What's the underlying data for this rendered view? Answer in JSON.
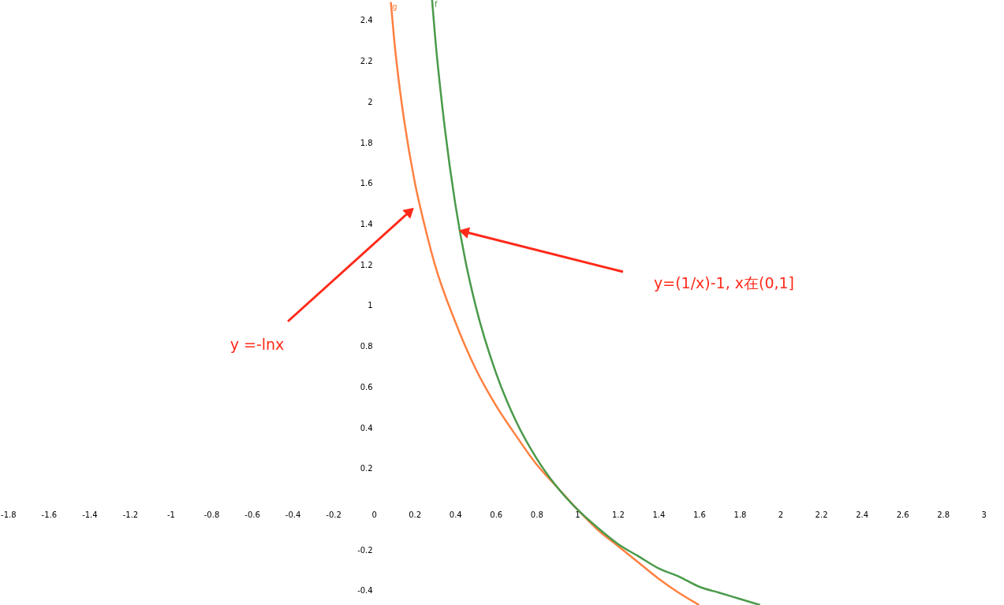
{
  "chart_data": {
    "type": "line",
    "xlim": [
      -1.84,
      3.1
    ],
    "ylim": [
      -0.47,
      2.5
    ],
    "xticks": [
      -1.8,
      -1.6,
      -1.4,
      -1.2,
      -1,
      -0.8,
      -0.6,
      -0.4,
      -0.2,
      0,
      0.2,
      0.4,
      0.6,
      0.8,
      1,
      1.2,
      1.4,
      1.6,
      1.8,
      2,
      2.2,
      2.4,
      2.6,
      2.8,
      3
    ],
    "yticks": [
      -0.4,
      -0.2,
      0.2,
      0.4,
      0.6,
      0.8,
      1,
      1.2,
      1.4,
      1.6,
      1.8,
      2,
      2.2,
      2.4
    ],
    "grid": false,
    "marker": "none",
    "line_style": "solid",
    "series": [
      {
        "name": "g",
        "color": "#ff8040",
        "x": [
          0.083,
          0.1,
          0.12,
          0.15,
          0.2,
          0.25,
          0.3,
          0.4,
          0.5,
          0.6,
          0.7,
          0.8,
          0.9,
          1,
          1.1,
          1.2,
          1.3,
          1.4,
          1.5,
          1.6
        ],
        "values": [
          2.49,
          2.3,
          2.12,
          1.9,
          1.61,
          1.39,
          1.2,
          0.92,
          0.69,
          0.51,
          0.36,
          0.22,
          0.11,
          0,
          -0.1,
          -0.18,
          -0.26,
          -0.34,
          -0.41,
          -0.47
        ]
      },
      {
        "name": "f",
        "color": "#4a9a4a",
        "x": [
          0.286,
          0.3,
          0.35,
          0.4,
          0.45,
          0.5,
          0.6,
          0.7,
          0.8,
          0.9,
          1,
          1.1,
          1.2,
          1.3,
          1.4,
          1.5,
          1.6,
          1.7,
          1.8,
          1.9
        ],
        "values": [
          2.5,
          2.33,
          1.86,
          1.5,
          1.22,
          1.0,
          0.67,
          0.43,
          0.25,
          0.11,
          0,
          -0.09,
          -0.17,
          -0.23,
          -0.29,
          -0.33,
          -0.38,
          -0.41,
          -0.44,
          -0.47
        ]
      }
    ],
    "annotations": [
      "y =-lnx",
      "y=(1/x)-1,  x在(0,1]"
    ]
  }
}
